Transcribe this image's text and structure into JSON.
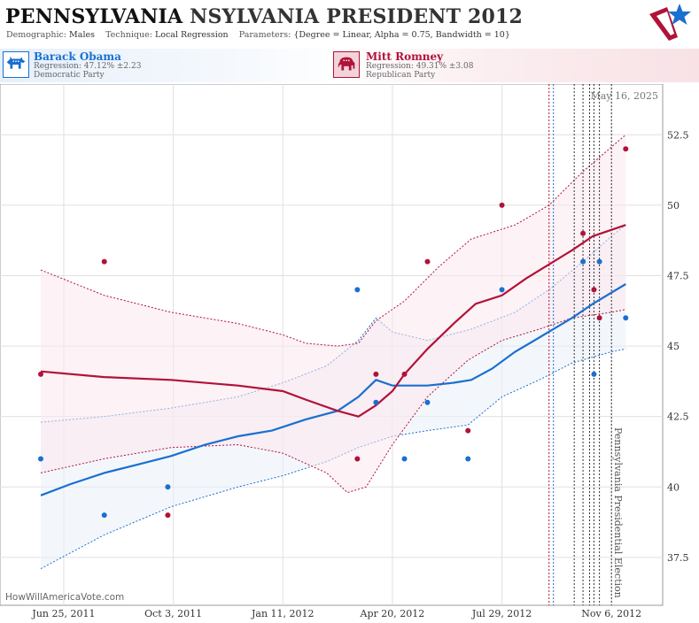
{
  "title": {
    "state": "PENNSYLVANIA",
    "race": "NSYLVANIA PRESIDENT 2012"
  },
  "params": {
    "demographic_label": "Demographic:",
    "demographic": "Males",
    "technique_label": "Technique:",
    "technique": "Local Regression",
    "parameters_label": "Parameters:",
    "parameters": "{Degree = Linear, Alpha = 0.75, Bandwidth = 10}"
  },
  "candidates": {
    "dem": {
      "name": "Barack Obama",
      "regression": "Regression: 47.12% ±2.23",
      "party": "Democratic Party"
    },
    "rep": {
      "name": "Mitt Romney",
      "regression": "Regression: 49.31% ±3.08",
      "party": "Republican Party"
    }
  },
  "colors": {
    "dem": "#1a6fd0",
    "rep": "#b1123a",
    "dem_fill": "#e9f1fa",
    "rep_fill": "#fbe7ec",
    "grid": "#e0e0e0"
  },
  "icons": {
    "logo": "flag-star-logo",
    "dem": "donkey-icon",
    "rep": "elephant-icon"
  },
  "chart_data": {
    "type": "scatter",
    "date_label": "May 16, 2025",
    "election_label": "Pennsylvania Presidential Election",
    "watermark": "HowWillAmericaVote.com",
    "ylim": [
      35.8,
      54.3
    ],
    "y_ticks": [
      37.5,
      40,
      42.5,
      45,
      47.5,
      50,
      52.5
    ],
    "x_range": [
      "2011-06-04",
      "2012-11-22"
    ],
    "x_ticks": [
      {
        "date": "2011-06-25",
        "label": "Jun 25, 2011"
      },
      {
        "date": "2011-10-03",
        "label": "Oct 3, 2011"
      },
      {
        "date": "2012-01-11",
        "label": "Jan 11, 2012"
      },
      {
        "date": "2012-04-20",
        "label": "Apr 20, 2012"
      },
      {
        "date": "2012-07-29",
        "label": "Jul 29, 2012"
      },
      {
        "date": "2012-11-06",
        "label": "Nov 6, 2012"
      }
    ],
    "vlines": [
      {
        "date": "2012-09-10",
        "color": "#b1123a"
      },
      {
        "date": "2012-09-14",
        "color": "#1a6fd0"
      },
      {
        "date": "2012-10-03",
        "color": "#333333"
      },
      {
        "date": "2012-10-11",
        "color": "#333333"
      },
      {
        "date": "2012-10-17",
        "color": "#333333"
      },
      {
        "date": "2012-10-21",
        "color": "#333333"
      },
      {
        "date": "2012-10-26",
        "color": "#333333"
      },
      {
        "date": "2012-11-06",
        "color": "#333333"
      }
    ],
    "series": [
      {
        "name": "Barack Obama",
        "color": "#1a6fd0",
        "points": [
          [
            "2011-06-04",
            41.0
          ],
          [
            "2011-08-01",
            39.0
          ],
          [
            "2011-09-28",
            40.0
          ],
          [
            "2012-03-19",
            47.0
          ],
          [
            "2012-04-05",
            43.0
          ],
          [
            "2012-05-01",
            41.0
          ],
          [
            "2012-05-22",
            43.0
          ],
          [
            "2012-06-28",
            41.0
          ],
          [
            "2012-07-29",
            47.0
          ],
          [
            "2012-10-11",
            48.0
          ],
          [
            "2012-10-21",
            44.0
          ],
          [
            "2012-10-26",
            48.0
          ],
          [
            "2012-11-19",
            46.0
          ]
        ],
        "trend": [
          [
            "2011-06-04",
            39.7
          ],
          [
            "2011-07-01",
            40.1
          ],
          [
            "2011-08-01",
            40.5
          ],
          [
            "2011-09-01",
            40.8
          ],
          [
            "2011-10-01",
            41.1
          ],
          [
            "2011-11-01",
            41.5
          ],
          [
            "2011-12-01",
            41.8
          ],
          [
            "2012-01-01",
            42.0
          ],
          [
            "2012-02-01",
            42.4
          ],
          [
            "2012-03-01",
            42.7
          ],
          [
            "2012-03-20",
            43.2
          ],
          [
            "2012-04-05",
            43.8
          ],
          [
            "2012-04-20",
            43.6
          ],
          [
            "2012-05-01",
            43.6
          ],
          [
            "2012-05-22",
            43.6
          ],
          [
            "2012-06-15",
            43.7
          ],
          [
            "2012-07-01",
            43.8
          ],
          [
            "2012-07-20",
            44.2
          ],
          [
            "2012-08-10",
            44.8
          ],
          [
            "2012-09-01",
            45.3
          ],
          [
            "2012-10-01",
            46.0
          ],
          [
            "2012-10-20",
            46.5
          ],
          [
            "2012-11-19",
            47.2
          ]
        ],
        "upper": [
          [
            "2011-06-04",
            42.3
          ],
          [
            "2011-08-01",
            42.5
          ],
          [
            "2011-10-01",
            42.8
          ],
          [
            "2011-12-01",
            43.2
          ],
          [
            "2012-01-11",
            43.7
          ],
          [
            "2012-02-20",
            44.3
          ],
          [
            "2012-03-20",
            45.2
          ],
          [
            "2012-04-05",
            46.0
          ],
          [
            "2012-04-20",
            45.5
          ],
          [
            "2012-05-22",
            45.2
          ],
          [
            "2012-07-01",
            45.6
          ],
          [
            "2012-08-10",
            46.2
          ],
          [
            "2012-09-10",
            47.0
          ],
          [
            "2012-10-11",
            48.0
          ],
          [
            "2012-11-06",
            48.9
          ],
          [
            "2012-11-19",
            49.3
          ]
        ],
        "lower": [
          [
            "2011-06-04",
            37.1
          ],
          [
            "2011-08-01",
            38.3
          ],
          [
            "2011-10-01",
            39.3
          ],
          [
            "2011-12-01",
            40.0
          ],
          [
            "2012-01-11",
            40.4
          ],
          [
            "2012-02-20",
            40.9
          ],
          [
            "2012-03-20",
            41.4
          ],
          [
            "2012-04-20",
            41.8
          ],
          [
            "2012-05-22",
            42.0
          ],
          [
            "2012-06-28",
            42.2
          ],
          [
            "2012-07-29",
            43.2
          ],
          [
            "2012-09-01",
            43.8
          ],
          [
            "2012-10-01",
            44.4
          ],
          [
            "2012-11-06",
            44.8
          ],
          [
            "2012-11-19",
            44.9
          ]
        ]
      },
      {
        "name": "Mitt Romney",
        "color": "#b1123a",
        "points": [
          [
            "2011-06-04",
            44.0
          ],
          [
            "2011-08-01",
            48.0
          ],
          [
            "2011-09-28",
            39.0
          ],
          [
            "2012-03-19",
            41.0
          ],
          [
            "2012-04-05",
            44.0
          ],
          [
            "2012-05-01",
            44.0
          ],
          [
            "2012-05-22",
            48.0
          ],
          [
            "2012-06-28",
            42.0
          ],
          [
            "2012-07-29",
            50.0
          ],
          [
            "2012-10-11",
            49.0
          ],
          [
            "2012-10-21",
            47.0
          ],
          [
            "2012-10-26",
            46.0
          ],
          [
            "2012-11-19",
            52.0
          ]
        ],
        "trend": [
          [
            "2011-06-04",
            44.1
          ],
          [
            "2011-08-01",
            43.9
          ],
          [
            "2011-10-01",
            43.8
          ],
          [
            "2011-12-01",
            43.6
          ],
          [
            "2012-01-11",
            43.4
          ],
          [
            "2012-02-01",
            43.1
          ],
          [
            "2012-03-01",
            42.7
          ],
          [
            "2012-03-20",
            42.5
          ],
          [
            "2012-04-05",
            42.9
          ],
          [
            "2012-04-20",
            43.4
          ],
          [
            "2012-05-01",
            44.0
          ],
          [
            "2012-05-22",
            44.9
          ],
          [
            "2012-06-15",
            45.8
          ],
          [
            "2012-07-05",
            46.5
          ],
          [
            "2012-07-29",
            46.8
          ],
          [
            "2012-08-20",
            47.4
          ],
          [
            "2012-09-10",
            47.9
          ],
          [
            "2012-10-01",
            48.4
          ],
          [
            "2012-10-20",
            48.9
          ],
          [
            "2012-11-19",
            49.3
          ]
        ],
        "upper": [
          [
            "2011-06-04",
            47.7
          ],
          [
            "2011-08-01",
            46.8
          ],
          [
            "2011-10-01",
            46.2
          ],
          [
            "2011-12-01",
            45.8
          ],
          [
            "2012-01-11",
            45.4
          ],
          [
            "2012-02-01",
            45.1
          ],
          [
            "2012-03-01",
            45.0
          ],
          [
            "2012-03-20",
            45.1
          ],
          [
            "2012-04-05",
            45.9
          ],
          [
            "2012-05-01",
            46.6
          ],
          [
            "2012-06-01",
            47.8
          ],
          [
            "2012-07-01",
            48.8
          ],
          [
            "2012-08-10",
            49.3
          ],
          [
            "2012-09-10",
            50.0
          ],
          [
            "2012-10-11",
            51.2
          ],
          [
            "2012-11-19",
            52.5
          ]
        ],
        "lower": [
          [
            "2011-06-04",
            40.5
          ],
          [
            "2011-08-01",
            41.0
          ],
          [
            "2011-10-01",
            41.4
          ],
          [
            "2011-12-01",
            41.5
          ],
          [
            "2012-01-11",
            41.2
          ],
          [
            "2012-02-20",
            40.5
          ],
          [
            "2012-03-10",
            39.8
          ],
          [
            "2012-03-27",
            40.0
          ],
          [
            "2012-04-20",
            41.5
          ],
          [
            "2012-05-22",
            43.2
          ],
          [
            "2012-06-28",
            44.5
          ],
          [
            "2012-07-29",
            45.2
          ],
          [
            "2012-09-01",
            45.6
          ],
          [
            "2012-10-01",
            46.0
          ],
          [
            "2012-11-06",
            46.2
          ],
          [
            "2012-11-19",
            46.3
          ]
        ]
      }
    ]
  }
}
